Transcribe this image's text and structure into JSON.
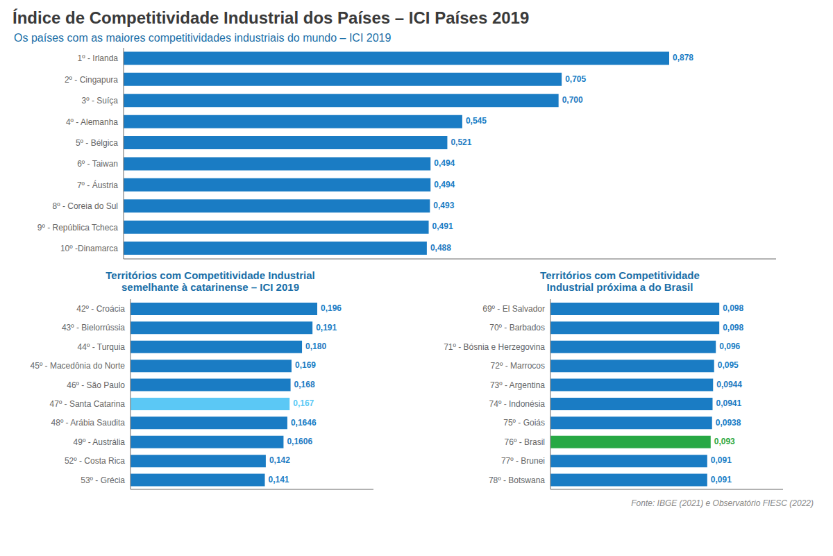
{
  "chart_data": [
    {
      "type": "bar",
      "orientation": "horizontal",
      "title": "Índice de Competitividade Industrial dos Países – ICI Países 2019",
      "subtitle": "Os países com as maiores competitividades industriais do mundo – ICI 2019",
      "categories": [
        "1º - Irlanda",
        "2º - Cingapura",
        "3º - Suíça",
        "4º - Alemanha",
        "5º - Bélgica",
        "6º - Taiwan",
        "7º - Áustria",
        "8º - Coreia do Sul",
        "9º - República Tcheca",
        "10º -Dinamarca"
      ],
      "values": [
        0.878,
        0.705,
        0.7,
        0.545,
        0.521,
        0.494,
        0.494,
        0.493,
        0.491,
        0.488
      ],
      "value_labels": [
        "0,878",
        "0,705",
        "0,700",
        "0,545",
        "0,521",
        "0,494",
        "0,494",
        "0,493",
        "0,491",
        "0,488"
      ],
      "color": "#1a7cc4",
      "xlim": [
        0,
        1.05
      ],
      "data_labels": true,
      "tick_labels": "y",
      "grid": false,
      "annotations": [
        "Fonte: IBGE (2021) e Observatório FIESC (2022)"
      ]
    },
    {
      "type": "bar",
      "orientation": "horizontal",
      "title": "Territórios com Competitividade Industrial\nsemelhante à catarinense – ICI 2019",
      "categories": [
        "42º - Croácia",
        "43º - Bielorrússia",
        "44º - Turquia",
        "45º - Macedônia do Norte",
        "46º - São Paulo",
        "47º - Santa Catarina",
        "48º - Arábia Saudita",
        "49º - Austrália",
        "52º - Costa Rica",
        "53º - Grécia"
      ],
      "values": [
        0.196,
        0.191,
        0.18,
        0.169,
        0.168,
        0.167,
        0.1646,
        0.1606,
        0.142,
        0.141
      ],
      "value_labels": [
        "0,196",
        "0,191",
        "0,180",
        "0,169",
        "0,168",
        "0,167",
        "0,1646",
        "0,1606",
        "0,142",
        "0,141"
      ],
      "colors": [
        "#1a7cc4",
        "#1a7cc4",
        "#1a7cc4",
        "#1a7cc4",
        "#1a7cc4",
        "#5bc8f5",
        "#1a7cc4",
        "#1a7cc4",
        "#1a7cc4",
        "#1a7cc4"
      ],
      "xlim": [
        0,
        0.255
      ],
      "data_labels": true,
      "tick_labels": "y",
      "grid": false
    },
    {
      "type": "bar",
      "orientation": "horizontal",
      "title": "Territórios com Competitividade\nIndustrial próxima a do Brasil",
      "categories": [
        "69º - El Salvador",
        "70º - Barbados",
        "71º - Bósnia e Herzegovina",
        "72º - Marrocos",
        "73º - Argentina",
        "74º - Indonésia",
        "75º - Goiás",
        "76º - Brasil",
        "77º - Brunei",
        "78º - Botswana"
      ],
      "values": [
        0.098,
        0.098,
        0.096,
        0.095,
        0.0944,
        0.0941,
        0.0938,
        0.093,
        0.091,
        0.091
      ],
      "value_labels": [
        "0,098",
        "0,098",
        "0,096",
        "0,095",
        "0,0944",
        "0,0941",
        "0,0938",
        "0,093",
        "0,091",
        "0,091"
      ],
      "colors": [
        "#1a7cc4",
        "#1a7cc4",
        "#1a7cc4",
        "#1a7cc4",
        "#1a7cc4",
        "#1a7cc4",
        "#1a7cc4",
        "#27a844",
        "#1a7cc4",
        "#1a7cc4"
      ],
      "xlim": [
        0,
        0.135
      ],
      "data_labels": true,
      "tick_labels": "y",
      "grid": false
    }
  ]
}
